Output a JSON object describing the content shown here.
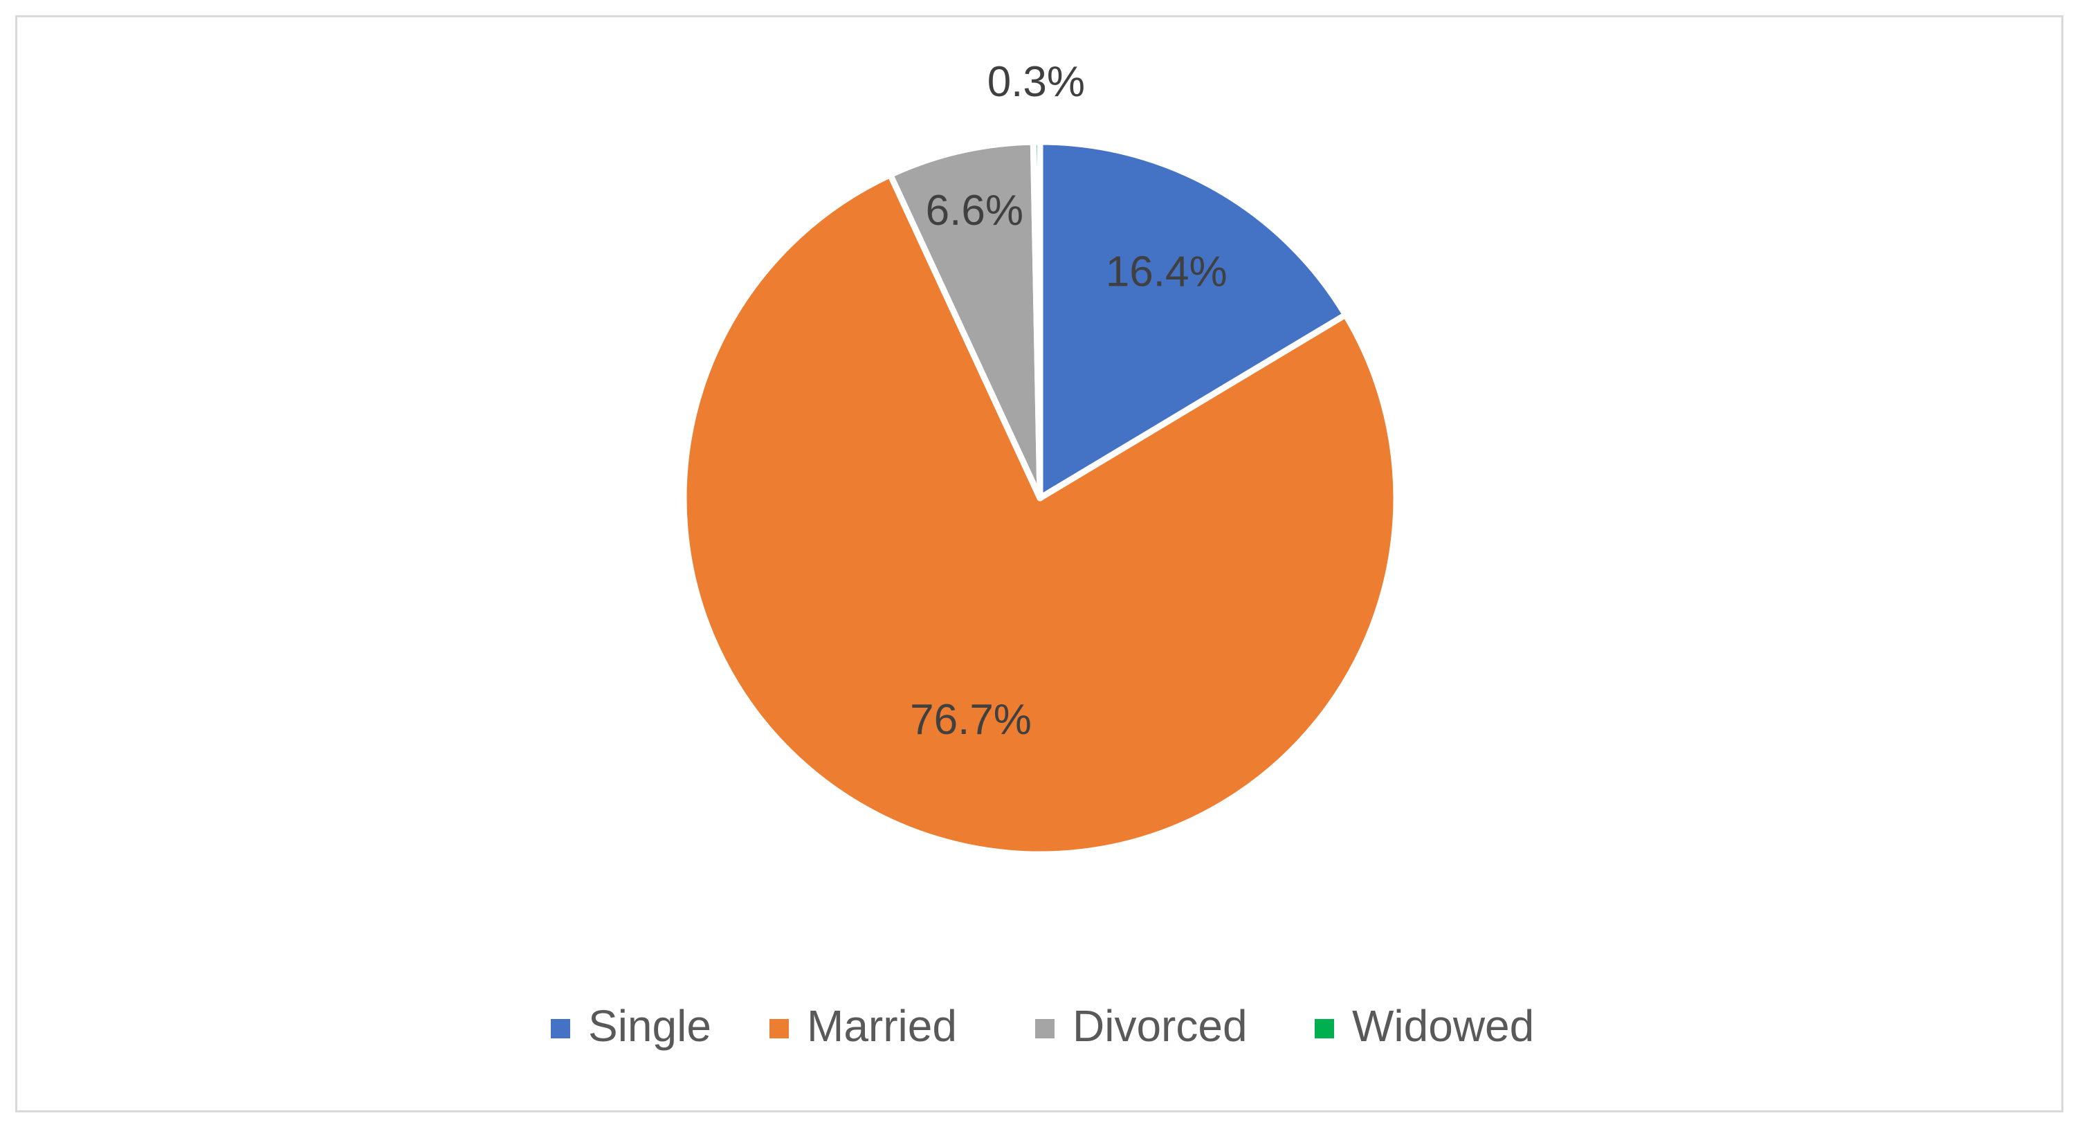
{
  "chart_data": {
    "type": "pie",
    "categories": [
      "Single",
      "Married",
      "Divorced",
      "Widowed"
    ],
    "values": [
      16.4,
      76.7,
      6.6,
      0.3
    ],
    "data_labels": [
      "16.4%",
      "76.7%",
      "6.6%",
      "0.3%"
    ],
    "colors": [
      "#4472C4",
      "#ED7D31",
      "#A5A5A5",
      "#00B050"
    ],
    "start_angle": "12 o'clock",
    "direction": "clockwise",
    "legend_position": "bottom"
  }
}
